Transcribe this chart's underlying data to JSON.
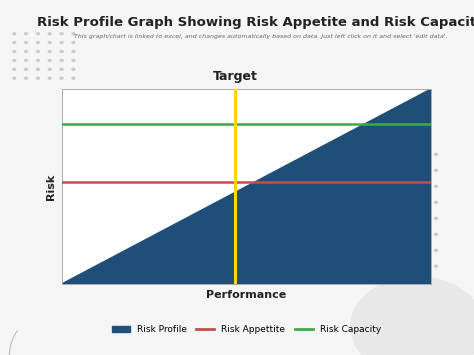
{
  "title": "Risk Profile Graph Showing Risk Appetite and Risk Capacity",
  "subtitle": "This graph/chart is linked to excel, and changes automatically based on data. Just left click on it and select 'edit data'.",
  "xlabel": "Performance",
  "ylabel": "Risk",
  "target_label": "Target",
  "risk_profile_color": "#1F4E79",
  "risk_appetite_color": "#C0504D",
  "risk_capacity_color": "#3DAA4C",
  "target_line_color": "#FFD700",
  "background_color": "#F5F5F5",
  "plot_bg_color": "#FFFFFF",
  "xlim": [
    0,
    10
  ],
  "ylim": [
    0,
    10
  ],
  "risk_appetite_y": 5.2,
  "risk_capacity_y": 8.2,
  "target_x": 4.7,
  "legend_labels": [
    "Risk Profile",
    "Risk Appettite",
    "Risk Capacity"
  ],
  "title_fontsize": 9.5,
  "subtitle_fontsize": 4.5,
  "axis_label_fontsize": 8,
  "legend_fontsize": 6.5,
  "target_fontsize": 9
}
